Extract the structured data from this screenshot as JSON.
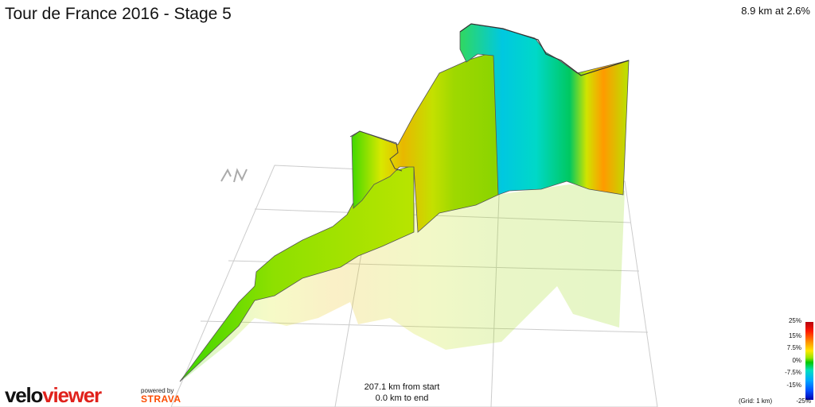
{
  "header": {
    "title": "Tour de France 2016 - Stage 5",
    "climb_summary": "8.9 km at 2.6%"
  },
  "readout": {
    "from_start": "207.1 km from start",
    "to_end": "0.0 km to end"
  },
  "branding": {
    "logo_part1": "velo",
    "logo_part2": "viewer",
    "powered_by": "powered by",
    "strava": "STRAVA"
  },
  "legend": {
    "ticks": [
      "25%",
      "15%",
      "7.5%",
      "0%",
      "-7.5%",
      "-15%",
      "-25%"
    ],
    "grid_note": "(Grid: 1 km)"
  },
  "colors": {
    "grade_scale": [
      "#b8000e",
      "#ff1a00",
      "#ff8c00",
      "#ffe800",
      "#99e600",
      "#00c800",
      "#00e0c0",
      "#00aaff",
      "#0050ff",
      "#0000b0"
    ],
    "grid_line": "#cccccc",
    "viewer_red": "#e0211b",
    "strava_orange": "#fc4c02"
  },
  "compass": {
    "icon": "north-arrow-icon",
    "glyph": "N"
  }
}
